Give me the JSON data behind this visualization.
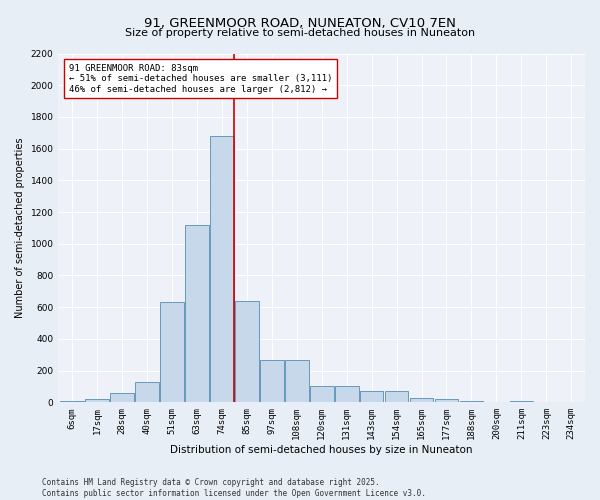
{
  "title": "91, GREENMOOR ROAD, NUNEATON, CV10 7EN",
  "subtitle": "Size of property relative to semi-detached houses in Nuneaton",
  "xlabel": "Distribution of semi-detached houses by size in Nuneaton",
  "ylabel": "Number of semi-detached properties",
  "categories": [
    "6sqm",
    "17sqm",
    "28sqm",
    "40sqm",
    "51sqm",
    "63sqm",
    "74sqm",
    "85sqm",
    "97sqm",
    "108sqm",
    "120sqm",
    "131sqm",
    "143sqm",
    "154sqm",
    "165sqm",
    "177sqm",
    "188sqm",
    "200sqm",
    "211sqm",
    "223sqm",
    "234sqm"
  ],
  "values": [
    10,
    20,
    60,
    130,
    630,
    1120,
    1680,
    640,
    270,
    270,
    100,
    100,
    70,
    70,
    30,
    20,
    10,
    0,
    10,
    0,
    0
  ],
  "bar_color": "#c8d8eb",
  "bar_edge_color": "#6699bb",
  "vline_color": "#cc0000",
  "annotation_text": "91 GREENMOOR ROAD: 83sqm\n← 51% of semi-detached houses are smaller (3,111)\n46% of semi-detached houses are larger (2,812) →",
  "annotation_box_color": "#ffffff",
  "annotation_box_edge": "#cc0000",
  "ylim": [
    0,
    2200
  ],
  "yticks": [
    0,
    200,
    400,
    600,
    800,
    1000,
    1200,
    1400,
    1600,
    1800,
    2000,
    2200
  ],
  "bg_color": "#e8eef5",
  "plot_bg_color": "#eef2f8",
  "grid_color": "#ffffff",
  "footer": "Contains HM Land Registry data © Crown copyright and database right 2025.\nContains public sector information licensed under the Open Government Licence v3.0.",
  "title_fontsize": 9.5,
  "xlabel_fontsize": 7.5,
  "ylabel_fontsize": 7,
  "tick_fontsize": 6.5,
  "footer_fontsize": 5.5,
  "annotation_fontsize": 6.5,
  "vline_pos": 6.5
}
